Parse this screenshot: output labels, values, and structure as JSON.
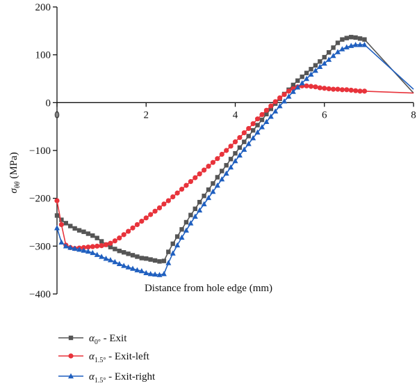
{
  "chart_data": {
    "type": "line",
    "xlabel": "Distance from hole edge (mm)",
    "ylabel": "σθθ (MPa)",
    "ylabel_symbol": "σ",
    "ylabel_sub": "θθ",
    "ylabel_unit": " (MPa)",
    "xlim": [
      0,
      8
    ],
    "ylim": [
      -400,
      200
    ],
    "x_ticks": [
      0,
      2,
      4,
      6,
      8
    ],
    "x_tick_labels": [
      "0",
      "2",
      "4",
      "6",
      "8"
    ],
    "y_ticks": [
      200,
      100,
      0,
      -100,
      -200,
      -300,
      -400
    ],
    "y_tick_labels": [
      "200",
      "100",
      "0",
      "−100",
      "−200",
      "−300",
      "−400"
    ],
    "grid": false,
    "legend_position": "bottom-left, below plot",
    "series": [
      {
        "name": "α0° - Exit",
        "legend_symbol": "α",
        "legend_sub": "0°",
        "legend_text": " - Exit",
        "color": "#555555",
        "marker": "square",
        "x": [
          0,
          0.1,
          0.2,
          0.3,
          0.4,
          0.5,
          0.6,
          0.7,
          0.8,
          0.9,
          1.0,
          1.1,
          1.2,
          1.3,
          1.4,
          1.5,
          1.6,
          1.7,
          1.8,
          1.9,
          2.0,
          2.1,
          2.2,
          2.3,
          2.4,
          2.5,
          2.6,
          2.7,
          2.8,
          2.9,
          3.0,
          3.1,
          3.2,
          3.3,
          3.4,
          3.5,
          3.6,
          3.7,
          3.8,
          3.9,
          4.0,
          4.1,
          4.2,
          4.3,
          4.4,
          4.5,
          4.6,
          4.7,
          4.8,
          4.9,
          5.0,
          5.1,
          5.2,
          5.3,
          5.4,
          5.5,
          5.6,
          5.7,
          5.8,
          5.9,
          6.0,
          6.1,
          6.2,
          6.3,
          6.4,
          6.5,
          6.6,
          6.7,
          6.8,
          6.9,
          8.0
        ],
        "y": [
          -236,
          -245,
          -252,
          -258,
          -263,
          -267,
          -270,
          -274,
          -278,
          -283,
          -290,
          -297,
          -302,
          -306,
          -310,
          -313,
          -316,
          -319,
          -322,
          -325,
          -326,
          -328,
          -330,
          -332,
          -331,
          -312,
          -295,
          -280,
          -265,
          -250,
          -235,
          -222,
          -208,
          -195,
          -182,
          -169,
          -156,
          -143,
          -131,
          -118,
          -106,
          -94,
          -82,
          -70,
          -58,
          -47,
          -36,
          -24,
          -13,
          -2,
          8,
          18,
          27,
          37,
          46,
          54,
          62,
          70,
          78,
          86,
          95,
          105,
          115,
          125,
          132,
          135,
          137,
          136,
          134,
          132,
          20
        ]
      },
      {
        "name": "α1.5° - Exit-left",
        "legend_symbol": "α",
        "legend_sub": "1.5°",
        "legend_text": " - Exit-left",
        "color": "#e8333b",
        "marker": "circle",
        "x": [
          0,
          0.1,
          0.2,
          0.3,
          0.4,
          0.5,
          0.6,
          0.7,
          0.8,
          0.9,
          1.0,
          1.1,
          1.2,
          1.3,
          1.4,
          1.5,
          1.6,
          1.7,
          1.8,
          1.9,
          2.0,
          2.1,
          2.2,
          2.3,
          2.4,
          2.5,
          2.6,
          2.7,
          2.8,
          2.9,
          3.0,
          3.1,
          3.2,
          3.3,
          3.4,
          3.5,
          3.6,
          3.7,
          3.8,
          3.9,
          4.0,
          4.1,
          4.2,
          4.3,
          4.4,
          4.5,
          4.6,
          4.7,
          4.8,
          4.9,
          5.0,
          5.1,
          5.2,
          5.3,
          5.4,
          5.5,
          5.6,
          5.7,
          5.8,
          5.9,
          6.0,
          6.1,
          6.2,
          6.3,
          6.4,
          6.5,
          6.6,
          6.7,
          6.8,
          6.9,
          8.0
        ],
        "y": [
          -205,
          -255,
          -298,
          -303,
          -305,
          -304,
          -303,
          -302,
          -301,
          -300,
          -299,
          -297,
          -294,
          -289,
          -283,
          -276,
          -269,
          -262,
          -255,
          -248,
          -241,
          -234,
          -227,
          -220,
          -212,
          -205,
          -197,
          -189,
          -181,
          -173,
          -165,
          -157,
          -149,
          -141,
          -133,
          -125,
          -117,
          -108,
          -100,
          -91,
          -82,
          -73,
          -63,
          -54,
          -44,
          -34,
          -25,
          -16,
          -7,
          2,
          10,
          17,
          24,
          29,
          33,
          35,
          35,
          34,
          33,
          31,
          30,
          29,
          28,
          28,
          27,
          27,
          26,
          25,
          24,
          24,
          20
        ]
      },
      {
        "name": "α1.5° - Exit-right",
        "legend_symbol": "α",
        "legend_sub": "1.5°",
        "legend_text": " - Exit-right",
        "color": "#1f5fbf",
        "marker": "triangle",
        "x": [
          0,
          0.1,
          0.2,
          0.3,
          0.4,
          0.5,
          0.6,
          0.7,
          0.8,
          0.9,
          1.0,
          1.1,
          1.2,
          1.3,
          1.4,
          1.5,
          1.6,
          1.7,
          1.8,
          1.9,
          2.0,
          2.1,
          2.2,
          2.3,
          2.4,
          2.5,
          2.6,
          2.7,
          2.8,
          2.9,
          3.0,
          3.1,
          3.2,
          3.3,
          3.4,
          3.5,
          3.6,
          3.7,
          3.8,
          3.9,
          4.0,
          4.1,
          4.2,
          4.3,
          4.4,
          4.5,
          4.6,
          4.7,
          4.8,
          4.9,
          5.0,
          5.1,
          5.2,
          5.3,
          5.4,
          5.5,
          5.6,
          5.7,
          5.8,
          5.9,
          6.0,
          6.1,
          6.2,
          6.3,
          6.4,
          6.5,
          6.6,
          6.7,
          6.8,
          6.9,
          8.0
        ],
        "y": [
          -262,
          -292,
          -300,
          -303,
          -305,
          -307,
          -309,
          -311,
          -314,
          -318,
          -322,
          -326,
          -329,
          -333,
          -337,
          -341,
          -344,
          -347,
          -350,
          -352,
          -356,
          -358,
          -359,
          -360,
          -358,
          -335,
          -315,
          -298,
          -282,
          -267,
          -252,
          -238,
          -225,
          -212,
          -199,
          -186,
          -173,
          -160,
          -148,
          -135,
          -122,
          -110,
          -98,
          -86,
          -74,
          -62,
          -51,
          -40,
          -29,
          -18,
          -7,
          3,
          13,
          23,
          32,
          41,
          50,
          59,
          67,
          75,
          82,
          90,
          98,
          106,
          112,
          116,
          119,
          121,
          121,
          121,
          28
        ]
      }
    ]
  }
}
